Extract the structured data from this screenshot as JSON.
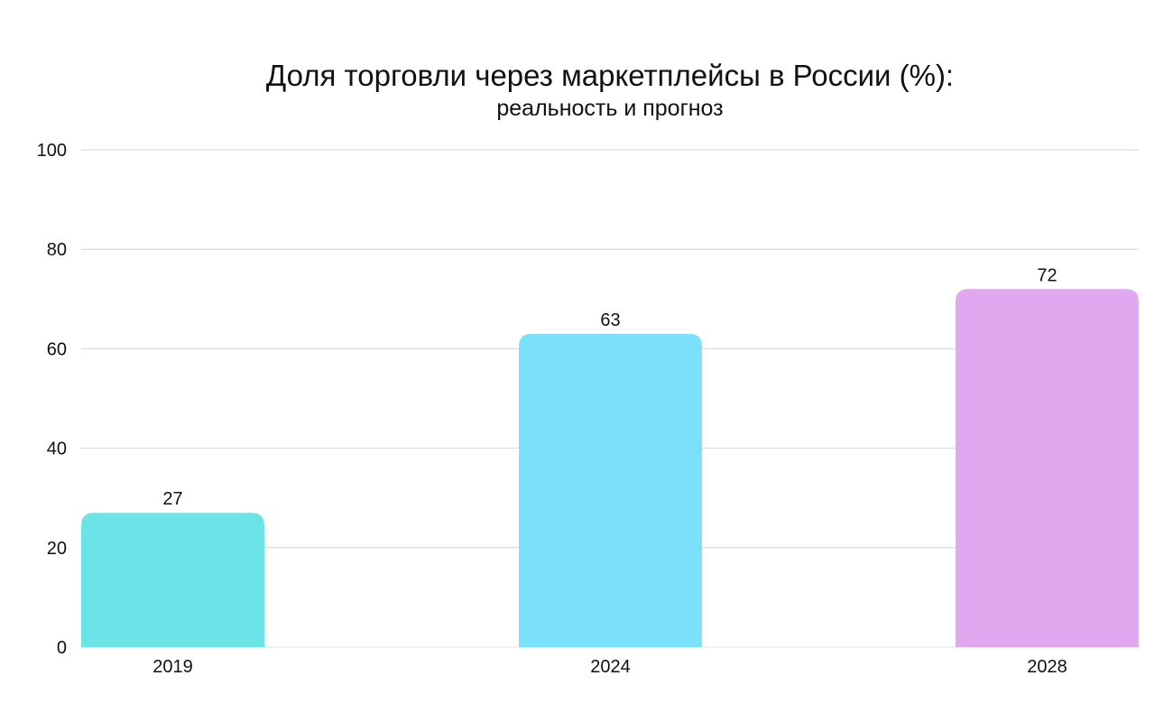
{
  "chart_data": {
    "type": "bar",
    "title": "Доля торговли через маркетплейсы в России (%):",
    "subtitle": "реальность и прогноз",
    "categories": [
      "2019",
      "2024",
      "2028"
    ],
    "values": [
      27,
      63,
      72
    ],
    "value_labels": [
      "27",
      "63",
      "72"
    ],
    "bar_colors": [
      "#6ce3e6",
      "#7ae0fc",
      "#e2a8ef"
    ],
    "xlabel": "",
    "ylabel": "",
    "ylim": [
      0,
      100
    ],
    "yticks": [
      0,
      20,
      40,
      60,
      80,
      100
    ],
    "ytick_labels": [
      "0",
      "20",
      "40",
      "60",
      "80",
      "100"
    ],
    "grid": true,
    "legend": "none"
  },
  "colors": {
    "grid": "#d4d4d4",
    "text": "#111111",
    "background": "#ffffff"
  }
}
